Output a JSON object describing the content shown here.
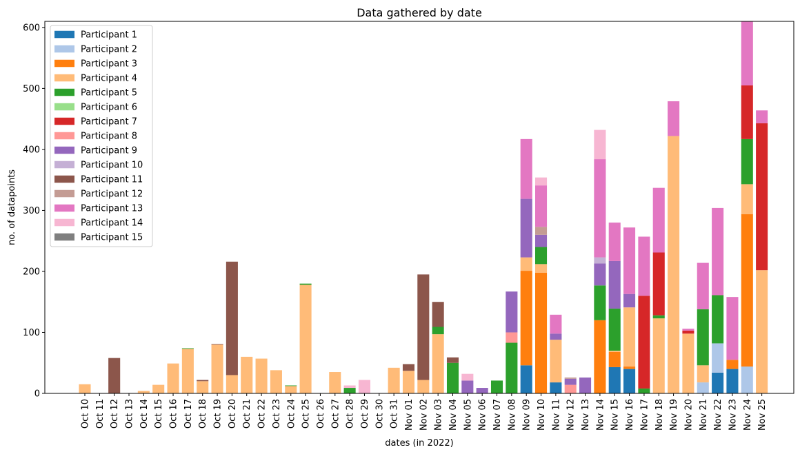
{
  "chart_data": {
    "type": "bar",
    "stacked": true,
    "title": "Data gathered by date",
    "xlabel": "dates (in 2022)",
    "ylabel": "no. of datapoints",
    "ylim": [
      0,
      610
    ],
    "yticks": [
      0,
      100,
      200,
      300,
      400,
      500,
      600
    ],
    "legend_position": "upper-left",
    "grid": false,
    "categories": [
      "Oct 10",
      "Oct 11",
      "Oct 12",
      "Oct 13",
      "Oct 14",
      "Oct 15",
      "Oct 16",
      "Oct 17",
      "Oct 18",
      "Oct 19",
      "Oct 20",
      "Oct 21",
      "Oct 22",
      "Oct 23",
      "Oct 24",
      "Oct 25",
      "Oct 26",
      "Oct 27",
      "Oct 28",
      "Oct 29",
      "Oct 30",
      "Oct 31",
      "Nov 01",
      "Nov 02",
      "Nov 03",
      "Nov 04",
      "Nov 05",
      "Nov 06",
      "Nov 07",
      "Nov 08",
      "Nov 09",
      "Nov 10",
      "Nov 11",
      "Nov 12",
      "Nov 13",
      "Nov 14",
      "Nov 15",
      "Nov 16",
      "Nov 17",
      "Nov 18",
      "Nov 19",
      "Nov 20",
      "Nov 21",
      "Nov 22",
      "Nov 23",
      "Nov 24",
      "Nov 25"
    ],
    "series": [
      {
        "name": "Participant 1",
        "color": "#1f77b4",
        "values": [
          0,
          0,
          0,
          0,
          0,
          0,
          0,
          0,
          0,
          0,
          0,
          0,
          0,
          0,
          0,
          0,
          0,
          0,
          0,
          0,
          0,
          0,
          0,
          0,
          0,
          0,
          0,
          0,
          0,
          0,
          46,
          0,
          18,
          0,
          0,
          0,
          43,
          40,
          0,
          0,
          0,
          0,
          0,
          34,
          40,
          0,
          0
        ]
      },
      {
        "name": "Participant 2",
        "color": "#aec7e8",
        "values": [
          0,
          0,
          0,
          0,
          0,
          0,
          0,
          0,
          0,
          0,
          0,
          0,
          0,
          0,
          0,
          0,
          0,
          0,
          0,
          0,
          0,
          0,
          0,
          0,
          0,
          0,
          0,
          0,
          0,
          0,
          0,
          0,
          0,
          0,
          0,
          0,
          0,
          0,
          0,
          0,
          0,
          0,
          18,
          48,
          0,
          44,
          0
        ]
      },
      {
        "name": "Participant 3",
        "color": "#ff7f0e",
        "values": [
          0,
          0,
          0,
          0,
          0,
          0,
          0,
          0,
          0,
          0,
          0,
          0,
          0,
          0,
          0,
          0,
          0,
          0,
          0,
          0,
          0,
          0,
          0,
          0,
          0,
          0,
          0,
          0,
          0,
          0,
          155,
          198,
          0,
          0,
          0,
          120,
          25,
          4,
          0,
          0,
          0,
          0,
          0,
          0,
          15,
          250,
          0
        ]
      },
      {
        "name": "Participant 4",
        "color": "#ffbb78",
        "values": [
          15,
          0,
          0,
          0,
          4,
          14,
          49,
          73,
          20,
          80,
          30,
          60,
          57,
          38,
          12,
          178,
          0,
          35,
          0,
          0,
          0,
          42,
          37,
          22,
          97,
          0,
          0,
          0,
          0,
          0,
          22,
          14,
          70,
          0,
          0,
          0,
          2,
          97,
          0,
          123,
          422,
          98,
          28,
          0,
          0,
          49,
          202
        ]
      },
      {
        "name": "Participant 5",
        "color": "#2ca02c",
        "values": [
          0,
          0,
          0,
          0,
          0,
          0,
          0,
          1,
          0,
          0,
          0,
          0,
          0,
          0,
          1,
          2,
          0,
          0,
          9,
          0,
          0,
          0,
          0,
          0,
          12,
          50,
          0,
          0,
          21,
          83,
          0,
          28,
          0,
          0,
          0,
          57,
          69,
          0,
          8,
          5,
          0,
          0,
          92,
          79,
          0,
          74,
          0
        ]
      },
      {
        "name": "Participant 6",
        "color": "#98df8a",
        "values": [
          0,
          0,
          0,
          0,
          0,
          0,
          0,
          0,
          0,
          0,
          0,
          0,
          0,
          0,
          0,
          0,
          0,
          0,
          0,
          0,
          0,
          0,
          0,
          0,
          0,
          0,
          0,
          0,
          0,
          0,
          0,
          0,
          0,
          0,
          0,
          0,
          0,
          0,
          0,
          0,
          0,
          0,
          0,
          0,
          0,
          0,
          0
        ]
      },
      {
        "name": "Participant 7",
        "color": "#d62728",
        "values": [
          0,
          0,
          0,
          0,
          0,
          0,
          0,
          0,
          0,
          0,
          0,
          0,
          0,
          0,
          0,
          0,
          0,
          0,
          0,
          0,
          0,
          0,
          0,
          0,
          0,
          0,
          0,
          0,
          0,
          0,
          0,
          0,
          0,
          0,
          0,
          0,
          0,
          0,
          152,
          103,
          0,
          5,
          0,
          0,
          0,
          88,
          241
        ]
      },
      {
        "name": "Participant 8",
        "color": "#ff9896",
        "values": [
          0,
          0,
          0,
          0,
          0,
          0,
          0,
          0,
          0,
          0,
          0,
          0,
          0,
          0,
          0,
          0,
          0,
          0,
          0,
          0,
          0,
          0,
          0,
          0,
          0,
          0,
          0,
          0,
          0,
          17,
          0,
          0,
          0,
          14,
          0,
          0,
          0,
          0,
          0,
          0,
          0,
          0,
          0,
          0,
          0,
          0,
          0
        ]
      },
      {
        "name": "Participant 9",
        "color": "#9467bd",
        "values": [
          0,
          0,
          0,
          0,
          0,
          0,
          0,
          0,
          0,
          0,
          0,
          0,
          0,
          0,
          0,
          0,
          0,
          0,
          0,
          0,
          0,
          0,
          0,
          0,
          0,
          0,
          21,
          9,
          0,
          67,
          96,
          20,
          10,
          10,
          26,
          36,
          78,
          22,
          0,
          0,
          0,
          0,
          0,
          0,
          0,
          0,
          0
        ]
      },
      {
        "name": "Participant 10",
        "color": "#c5b0d5",
        "values": [
          0,
          0,
          0,
          0,
          0,
          0,
          0,
          0,
          0,
          0,
          0,
          0,
          0,
          0,
          0,
          0,
          0,
          0,
          0,
          0,
          0,
          0,
          0,
          0,
          0,
          0,
          0,
          0,
          0,
          0,
          0,
          0,
          0,
          0,
          0,
          10,
          0,
          0,
          0,
          0,
          0,
          0,
          0,
          0,
          0,
          0,
          0
        ]
      },
      {
        "name": "Participant 11",
        "color": "#8c564b",
        "values": [
          0,
          0,
          58,
          0,
          0,
          0,
          0,
          0,
          2,
          1,
          186,
          0,
          0,
          0,
          0,
          0,
          0,
          0,
          0,
          0,
          0,
          0,
          11,
          173,
          41,
          9,
          0,
          0,
          0,
          0,
          0,
          0,
          0,
          0,
          0,
          0,
          0,
          0,
          0,
          0,
          0,
          0,
          0,
          0,
          0,
          0,
          0
        ]
      },
      {
        "name": "Participant 12",
        "color": "#c49c94",
        "values": [
          0,
          0,
          0,
          0,
          0,
          0,
          0,
          0,
          0,
          0,
          0,
          0,
          0,
          0,
          0,
          0,
          0,
          0,
          0,
          0,
          0,
          0,
          0,
          0,
          0,
          0,
          0,
          0,
          0,
          0,
          0,
          13,
          0,
          2,
          0,
          0,
          0,
          0,
          0,
          0,
          0,
          0,
          0,
          0,
          0,
          0,
          0
        ]
      },
      {
        "name": "Participant 13",
        "color": "#e377c2",
        "values": [
          0,
          0,
          0,
          0,
          0,
          0,
          0,
          0,
          0,
          0,
          0,
          0,
          0,
          0,
          0,
          0,
          0,
          0,
          0,
          0,
          0,
          0,
          0,
          0,
          0,
          0,
          0,
          0,
          0,
          0,
          98,
          68,
          31,
          0,
          0,
          161,
          63,
          109,
          97,
          106,
          57,
          3,
          76,
          143,
          103,
          106,
          21
        ]
      },
      {
        "name": "Participant 14",
        "color": "#f7b6d2",
        "values": [
          0,
          0,
          0,
          0,
          0,
          0,
          0,
          0,
          0,
          0,
          0,
          0,
          0,
          0,
          0,
          0,
          0,
          0,
          4,
          22,
          0,
          0,
          0,
          0,
          0,
          0,
          11,
          0,
          0,
          0,
          0,
          13,
          0,
          0,
          0,
          48,
          0,
          0,
          0,
          0,
          0,
          0,
          0,
          0,
          0,
          0,
          0
        ]
      },
      {
        "name": "Participant 15",
        "color": "#7f7f7f",
        "values": [
          0,
          0,
          0,
          0,
          0,
          0,
          0,
          0,
          0,
          0,
          0,
          0,
          0,
          0,
          0,
          0,
          0,
          0,
          0,
          0,
          0,
          0,
          0,
          0,
          0,
          0,
          0,
          0,
          0,
          0,
          0,
          0,
          0,
          0,
          0,
          0,
          0,
          0,
          0,
          0,
          0,
          0,
          0,
          0,
          0,
          0,
          0
        ]
      }
    ]
  }
}
